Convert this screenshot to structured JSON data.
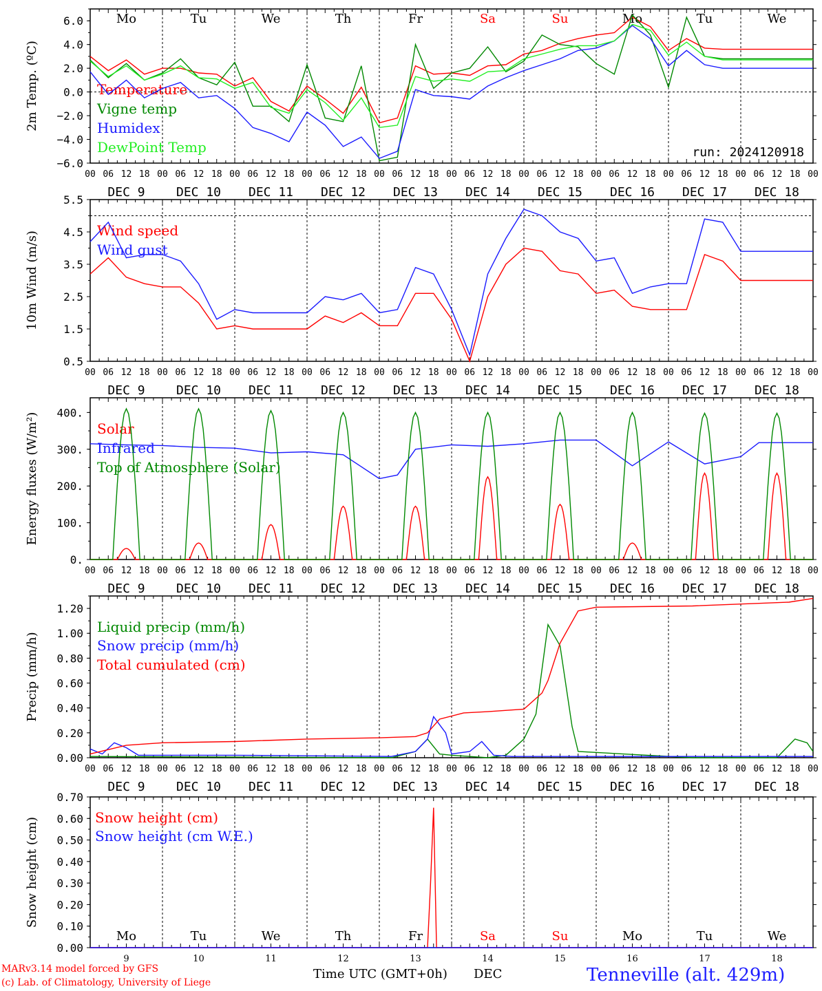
{
  "footer": {
    "model": "MARv3.14 model forced by GFS",
    "credit": "(c) Lab. of Climatology, University of Liege",
    "time_label": "Time UTC (GMT+0h)",
    "dec": "DEC",
    "station": "Tenneville (alt. 429m)"
  },
  "colors": {
    "red": "#ff0000",
    "green": "#008800",
    "blue": "#1a1aff",
    "lightgreen": "#22ee22",
    "black": "#000000"
  },
  "chart_data": [
    {
      "id": "temp",
      "type": "line",
      "ylabel": "2m Temp. (ºC)",
      "ylim": [
        -6,
        7
      ],
      "yticks": [
        6.0,
        4.0,
        2.0,
        0.0,
        -2.0,
        -4.0,
        -6.0
      ],
      "tick_labels": [
        "6.0",
        "4.0",
        "2.0",
        "0.0",
        "−2.0",
        "−4.0",
        "−6.0"
      ],
      "ref_lines": [
        0
      ],
      "x_unit": "hours since DEC 9 00 UTC",
      "days": [
        "Mo",
        "Tu",
        "We",
        "Th",
        "Fr",
        "Sa",
        "Su",
        "Mo",
        "Tu",
        "We"
      ],
      "weekend": [
        false,
        false,
        false,
        false,
        false,
        true,
        true,
        false,
        false,
        false
      ],
      "annotation": "run: 2024120918",
      "series": [
        {
          "name": "Temperature",
          "color": "red",
          "x": [
            0,
            6,
            12,
            18,
            24,
            30,
            36,
            42,
            48,
            54,
            60,
            66,
            72,
            78,
            84,
            90,
            96,
            102,
            108,
            114,
            120,
            126,
            132,
            138,
            144,
            150,
            156,
            162,
            168,
            174,
            180,
            186,
            192,
            198,
            204,
            210,
            216,
            222,
            228,
            234,
            240
          ],
          "values": [
            3.0,
            1.8,
            2.7,
            1.5,
            2.0,
            2.0,
            1.6,
            1.5,
            0.5,
            1.2,
            -0.8,
            -1.6,
            0.5,
            -0.6,
            -1.8,
            0.4,
            -2.6,
            -2.2,
            2.2,
            1.5,
            1.6,
            1.4,
            2.2,
            2.3,
            3.2,
            3.5,
            4.1,
            4.5,
            4.8,
            5.0,
            6.3,
            5.5,
            3.5,
            4.5,
            3.7,
            3.6,
            3.6,
            3.6,
            3.6,
            3.6,
            3.6
          ]
        },
        {
          "name": "Vigne temp",
          "color": "green",
          "x": [
            0,
            6,
            12,
            18,
            24,
            30,
            36,
            42,
            48,
            54,
            60,
            66,
            72,
            78,
            84,
            90,
            96,
            102,
            108,
            114,
            120,
            126,
            132,
            138,
            144,
            150,
            156,
            162,
            168,
            174,
            180,
            186,
            192,
            198,
            204,
            210,
            216,
            222,
            228,
            234,
            240
          ],
          "values": [
            2.7,
            1.2,
            2.4,
            1.0,
            1.6,
            2.8,
            1.2,
            0.6,
            2.5,
            -1.2,
            -1.2,
            -2.5,
            2.3,
            -2.2,
            -2.5,
            2.2,
            -5.8,
            -5.5,
            4.0,
            0.3,
            1.6,
            2.0,
            3.8,
            1.7,
            2.6,
            4.8,
            4.0,
            3.8,
            2.4,
            1.5,
            6.5,
            4.8,
            0.4,
            6.3,
            3.0,
            2.8,
            2.8,
            2.8,
            2.8,
            2.8,
            2.8
          ]
        },
        {
          "name": "Humidex",
          "color": "blue",
          "x": [
            0,
            6,
            12,
            18,
            24,
            30,
            36,
            42,
            48,
            54,
            60,
            66,
            72,
            78,
            84,
            90,
            96,
            102,
            108,
            114,
            120,
            126,
            132,
            138,
            144,
            150,
            156,
            162,
            168,
            174,
            180,
            186,
            192,
            198,
            204,
            210,
            216,
            222,
            228,
            234,
            240
          ],
          "values": [
            1.7,
            -0.2,
            1.0,
            -0.5,
            0.3,
            0.8,
            -0.5,
            -0.3,
            -1.4,
            -3.0,
            -3.5,
            -4.2,
            -1.7,
            -2.8,
            -4.6,
            -3.8,
            -5.6,
            -5.0,
            0.2,
            -0.3,
            -0.4,
            -0.6,
            0.5,
            1.2,
            1.8,
            2.3,
            2.8,
            3.5,
            3.7,
            4.3,
            5.6,
            4.5,
            2.2,
            3.5,
            2.3,
            2.0,
            2.0,
            2.0,
            2.0,
            2.0,
            2.0
          ]
        },
        {
          "name": "DewPoint Temp",
          "color": "lightgreen",
          "x": [
            0,
            6,
            12,
            18,
            24,
            30,
            36,
            42,
            48,
            54,
            60,
            66,
            72,
            78,
            84,
            90,
            96,
            102,
            108,
            114,
            120,
            126,
            132,
            138,
            144,
            150,
            156,
            162,
            168,
            174,
            180,
            186,
            192,
            198,
            204,
            210,
            216,
            222,
            228,
            234,
            240
          ],
          "values": [
            2.6,
            1.3,
            2.2,
            1.0,
            1.5,
            2.2,
            1.2,
            1.1,
            0.3,
            0.8,
            -1.3,
            -1.8,
            0.2,
            -0.9,
            -2.4,
            -0.5,
            -3.0,
            -2.8,
            1.3,
            0.9,
            1.1,
            0.9,
            1.7,
            1.8,
            2.8,
            3.2,
            3.6,
            3.9,
            3.9,
            4.3,
            5.7,
            5.2,
            3.1,
            4.2,
            3.0,
            2.7,
            2.7,
            2.7,
            2.7,
            2.7,
            2.7
          ]
        }
      ]
    },
    {
      "id": "wind",
      "type": "line",
      "ylabel": "10m Wind (m/s)",
      "ylim": [
        0.5,
        5.5
      ],
      "yticks": [
        5.5,
        4.5,
        3.5,
        2.5,
        1.5,
        0.5
      ],
      "tick_labels": [
        "5.5",
        "4.5",
        "3.5",
        "2.5",
        "1.5",
        "0.5"
      ],
      "ref_lines": [
        5.0
      ],
      "series": [
        {
          "name": "Wind speed",
          "color": "red",
          "x": [
            0,
            6,
            12,
            18,
            24,
            30,
            36,
            42,
            48,
            54,
            60,
            66,
            72,
            78,
            84,
            90,
            96,
            102,
            108,
            114,
            120,
            126,
            132,
            138,
            144,
            150,
            156,
            162,
            168,
            174,
            180,
            186,
            192,
            198,
            204,
            210,
            216,
            222,
            228,
            234,
            240
          ],
          "values": [
            3.2,
            3.7,
            3.1,
            2.9,
            2.8,
            2.8,
            2.3,
            1.5,
            1.6,
            1.5,
            1.5,
            1.5,
            1.5,
            1.9,
            1.7,
            2.0,
            1.6,
            1.6,
            2.6,
            2.6,
            1.8,
            0.5,
            2.5,
            3.5,
            4.0,
            3.9,
            3.3,
            3.2,
            2.6,
            2.7,
            2.2,
            2.1,
            2.1,
            2.1,
            3.8,
            3.6,
            3.0,
            3.0,
            3.0,
            3.0,
            3.0
          ]
        },
        {
          "name": "Wind gust",
          "color": "blue",
          "x": [
            0,
            6,
            12,
            18,
            24,
            30,
            36,
            42,
            48,
            54,
            60,
            66,
            72,
            78,
            84,
            90,
            96,
            102,
            108,
            114,
            120,
            126,
            132,
            138,
            144,
            150,
            156,
            162,
            168,
            174,
            180,
            186,
            192,
            198,
            204,
            210,
            216,
            222,
            228,
            234,
            240
          ],
          "values": [
            4.2,
            4.8,
            3.7,
            3.8,
            3.8,
            3.6,
            2.9,
            1.8,
            2.1,
            2.0,
            2.0,
            2.0,
            2.0,
            2.5,
            2.4,
            2.6,
            2.0,
            2.1,
            3.4,
            3.2,
            2.1,
            0.7,
            3.2,
            4.3,
            5.2,
            5.0,
            4.5,
            4.3,
            3.6,
            3.7,
            2.6,
            2.8,
            2.9,
            2.9,
            4.9,
            4.8,
            3.9,
            3.9,
            3.9,
            3.9,
            3.9
          ]
        }
      ]
    },
    {
      "id": "energy",
      "type": "line",
      "ylabel": "Energy fluxes (W/m²)",
      "ylim": [
        0,
        440
      ],
      "yticks": [
        400,
        300,
        200,
        100,
        0
      ],
      "tick_labels": [
        "400.",
        "300.",
        "200.",
        "100.",
        "0."
      ],
      "series": [
        {
          "name": "Solar",
          "color": "red",
          "peaks": [
            30,
            45,
            95,
            145,
            145,
            225,
            150,
            45,
            235,
            235
          ]
        },
        {
          "name": "Infrared",
          "color": "blue",
          "x": [
            0,
            12,
            24,
            36,
            48,
            60,
            72,
            84,
            96,
            102,
            108,
            120,
            132,
            144,
            156,
            168,
            180,
            192,
            204,
            216,
            222,
            240
          ],
          "values": [
            315,
            312,
            310,
            305,
            303,
            290,
            293,
            285,
            220,
            230,
            300,
            312,
            308,
            315,
            325,
            325,
            255,
            320,
            260,
            280,
            318,
            318
          ]
        },
        {
          "name": "Top of Atmosphere (Solar)",
          "color": "green",
          "peaks": [
            410,
            410,
            405,
            400,
            400,
            400,
            400,
            400,
            398,
            398
          ]
        }
      ]
    },
    {
      "id": "precip",
      "type": "line",
      "ylabel": "Precip (mm/h)",
      "ylim": [
        0,
        1.3
      ],
      "yticks": [
        1.2,
        1.0,
        0.8,
        0.6,
        0.4,
        0.2,
        0.0
      ],
      "tick_labels": [
        "1.20",
        "1.00",
        "0.80",
        "0.60",
        "0.40",
        "0.20",
        "0.00"
      ],
      "series": [
        {
          "name": "Liquid precip (mm/h)",
          "color": "green",
          "x": [
            0,
            100,
            108,
            112,
            116,
            120,
            126,
            132,
            138,
            144,
            148,
            152,
            156,
            160,
            162,
            200,
            228,
            234,
            238,
            240
          ],
          "values": [
            0.01,
            0.0,
            0.05,
            0.15,
            0.03,
            0.02,
            0.01,
            0.0,
            0.02,
            0.15,
            0.35,
            1.07,
            0.9,
            0.25,
            0.05,
            0.0,
            0.0,
            0.15,
            0.12,
            0.05
          ]
        },
        {
          "name": "Snow precip (mm/h)",
          "color": "blue",
          "x": [
            0,
            4,
            8,
            12,
            16,
            24,
            48,
            100,
            108,
            112,
            114,
            118,
            120,
            126,
            130,
            134,
            140,
            160,
            240
          ],
          "values": [
            0.07,
            0.03,
            0.12,
            0.08,
            0.02,
            0.02,
            0.02,
            0.01,
            0.05,
            0.15,
            0.33,
            0.2,
            0.03,
            0.05,
            0.13,
            0.02,
            0.01,
            0.01,
            0.01
          ]
        },
        {
          "name": "Total cumulated (cm)",
          "color": "red",
          "x": [
            0,
            12,
            24,
            48,
            72,
            96,
            108,
            112,
            116,
            124,
            132,
            144,
            150,
            152,
            156,
            162,
            168,
            200,
            232,
            240
          ],
          "values": [
            0.03,
            0.1,
            0.12,
            0.13,
            0.15,
            0.16,
            0.17,
            0.2,
            0.31,
            0.36,
            0.37,
            0.39,
            0.52,
            0.62,
            0.92,
            1.18,
            1.21,
            1.22,
            1.25,
            1.28
          ]
        }
      ]
    },
    {
      "id": "snow",
      "type": "line",
      "ylabel": "Snow height (cm)",
      "ylim": [
        0,
        0.7
      ],
      "yticks": [
        0.7,
        0.6,
        0.5,
        0.4,
        0.3,
        0.2,
        0.1,
        0.0
      ],
      "tick_labels": [
        "0.70",
        "0.60",
        "0.50",
        "0.40",
        "0.30",
        "0.20",
        "0.10",
        "0.00"
      ],
      "days": [
        "Mo",
        "Tu",
        "We",
        "Th",
        "Fr",
        "Sa",
        "Su",
        "Mo",
        "Tu",
        "We"
      ],
      "weekend": [
        false,
        false,
        false,
        false,
        false,
        true,
        true,
        false,
        false,
        false
      ],
      "day_numbers": [
        "9",
        "10",
        "11",
        "12",
        "13",
        "14",
        "15",
        "16",
        "17",
        "18"
      ],
      "series": [
        {
          "name": "Snow height (cm)",
          "color": "red",
          "x": [
            0,
            112,
            113,
            114,
            115,
            240
          ],
          "values": [
            0,
            0,
            0.3,
            0.65,
            0,
            0
          ]
        },
        {
          "name": "Snow height (cm W.E.)",
          "color": "blue",
          "x": [
            0,
            240
          ],
          "values": [
            0,
            0
          ]
        }
      ]
    }
  ],
  "xaxis": {
    "hour_labels": [
      "00",
      "06",
      "12",
      "18"
    ],
    "date_labels": [
      "DEC  9",
      "DEC 10",
      "DEC 11",
      "DEC 12",
      "DEC 13",
      "DEC 14",
      "DEC 15",
      "DEC 16",
      "DEC 17",
      "DEC 18"
    ],
    "final_hour": "00"
  }
}
